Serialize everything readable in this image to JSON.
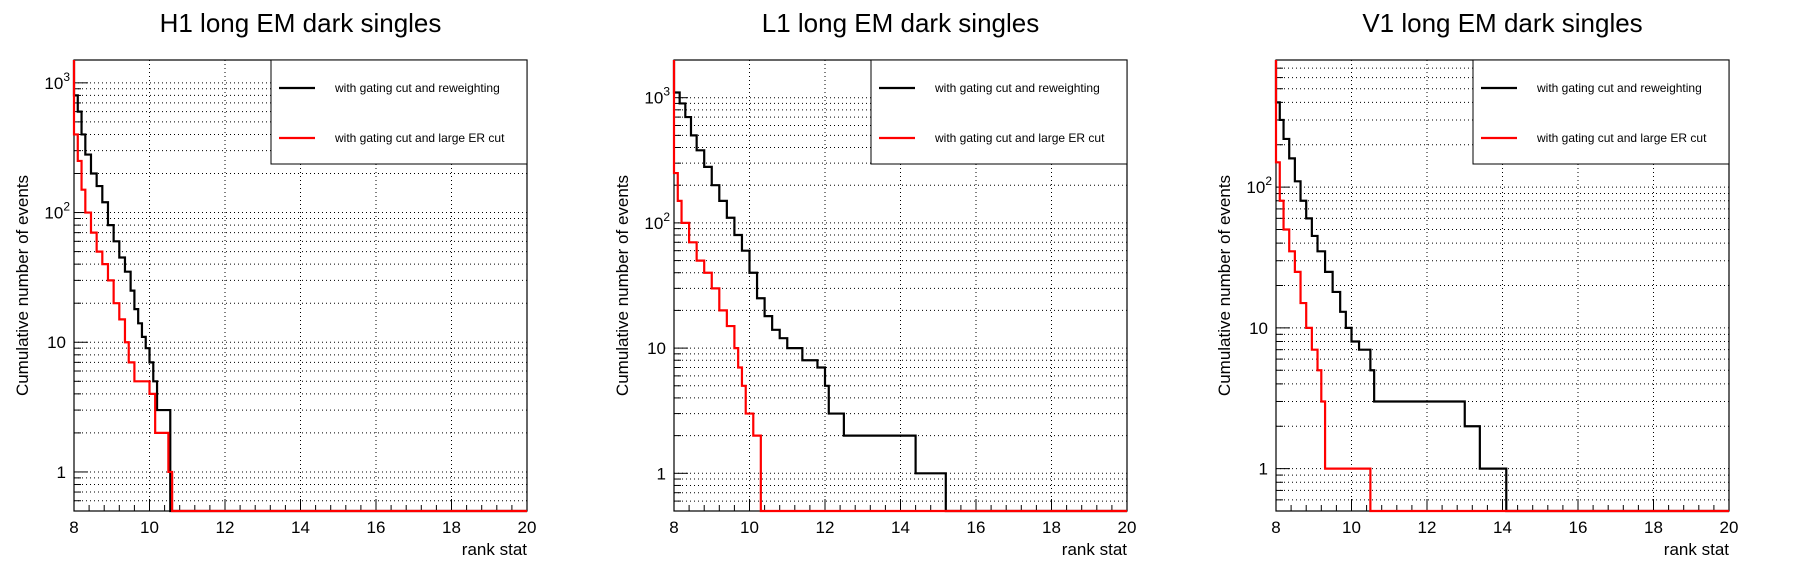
{
  "legend_labels": {
    "black": "with gating cut and reweighting",
    "red": "with gating cut and large ER cut"
  },
  "colors": {
    "black": "#000000",
    "red": "#ff0000",
    "grid": "#000000",
    "background": "#ffffff"
  },
  "chart_data": [
    {
      "type": "line",
      "step": true,
      "title": "H1 long EM dark singles",
      "xlabel": "rank stat",
      "ylabel": "Cumulative number of events",
      "xlim": [
        8,
        20
      ],
      "ylim": [
        0.5,
        1500
      ],
      "yscale": "log",
      "grid": true,
      "legend_position": "top-right",
      "xticks": [
        "8",
        "10",
        "12",
        "14",
        "16",
        "18",
        "20"
      ],
      "yticks": [
        {
          "value": 1,
          "label": "1"
        },
        {
          "value": 10,
          "label": "10"
        },
        {
          "value": 100,
          "label": "10^2"
        },
        {
          "value": 1000,
          "label": "10^3"
        }
      ],
      "series": [
        {
          "name": "with gating cut and reweighting",
          "color": "black",
          "points": [
            [
              8.0,
              800
            ],
            [
              8.1,
              600
            ],
            [
              8.2,
              400
            ],
            [
              8.3,
              280
            ],
            [
              8.45,
              200
            ],
            [
              8.6,
              160
            ],
            [
              8.75,
              120
            ],
            [
              8.9,
              80
            ],
            [
              9.05,
              60
            ],
            [
              9.2,
              45
            ],
            [
              9.35,
              35
            ],
            [
              9.5,
              25
            ],
            [
              9.6,
              18
            ],
            [
              9.7,
              14
            ],
            [
              9.8,
              11
            ],
            [
              9.9,
              9
            ],
            [
              10.0,
              7
            ],
            [
              10.1,
              5
            ],
            [
              10.2,
              3
            ],
            [
              10.55,
              0.5
            ]
          ]
        },
        {
          "name": "with gating cut and large ER cut",
          "color": "red",
          "points": [
            [
              8.0,
              400
            ],
            [
              8.1,
              250
            ],
            [
              8.2,
              150
            ],
            [
              8.3,
              100
            ],
            [
              8.45,
              70
            ],
            [
              8.6,
              50
            ],
            [
              8.75,
              40
            ],
            [
              8.9,
              30
            ],
            [
              9.05,
              20
            ],
            [
              9.2,
              15
            ],
            [
              9.35,
              10
            ],
            [
              9.45,
              7
            ],
            [
              9.6,
              5
            ],
            [
              10.0,
              4
            ],
            [
              10.15,
              2
            ],
            [
              10.5,
              1
            ],
            [
              10.6,
              0.5
            ]
          ]
        }
      ]
    },
    {
      "type": "line",
      "step": true,
      "title": "L1 long EM dark singles",
      "xlabel": "rank stat",
      "ylabel": "Cumulative number of events",
      "xlim": [
        8,
        20
      ],
      "ylim": [
        0.5,
        2000
      ],
      "yscale": "log",
      "grid": true,
      "legend_position": "top-right",
      "xticks": [
        "8",
        "10",
        "12",
        "14",
        "16",
        "18",
        "20"
      ],
      "yticks": [
        {
          "value": 1,
          "label": "1"
        },
        {
          "value": 10,
          "label": "10"
        },
        {
          "value": 100,
          "label": "10^2"
        },
        {
          "value": 1000,
          "label": "10^3"
        }
      ],
      "series": [
        {
          "name": "with gating cut and reweighting",
          "color": "black",
          "points": [
            [
              8.0,
              1100
            ],
            [
              8.15,
              900
            ],
            [
              8.3,
              700
            ],
            [
              8.45,
              500
            ],
            [
              8.6,
              380
            ],
            [
              8.8,
              280
            ],
            [
              9.0,
              200
            ],
            [
              9.2,
              150
            ],
            [
              9.4,
              110
            ],
            [
              9.6,
              80
            ],
            [
              9.8,
              60
            ],
            [
              10.0,
              40
            ],
            [
              10.2,
              25
            ],
            [
              10.4,
              18
            ],
            [
              10.6,
              14
            ],
            [
              10.8,
              12
            ],
            [
              11.0,
              10
            ],
            [
              11.4,
              8
            ],
            [
              11.8,
              7
            ],
            [
              12.0,
              5
            ],
            [
              12.1,
              3
            ],
            [
              12.5,
              2
            ],
            [
              14.4,
              1
            ],
            [
              15.2,
              0.5
            ]
          ]
        },
        {
          "name": "with gating cut and large ER cut",
          "color": "red",
          "points": [
            [
              8.0,
              250
            ],
            [
              8.1,
              150
            ],
            [
              8.2,
              100
            ],
            [
              8.4,
              70
            ],
            [
              8.6,
              50
            ],
            [
              8.8,
              40
            ],
            [
              9.0,
              30
            ],
            [
              9.2,
              20
            ],
            [
              9.4,
              15
            ],
            [
              9.6,
              10
            ],
            [
              9.7,
              7
            ],
            [
              9.8,
              5
            ],
            [
              9.9,
              3
            ],
            [
              10.1,
              2
            ],
            [
              10.3,
              0.5
            ]
          ]
        }
      ]
    },
    {
      "type": "line",
      "step": true,
      "title": "V1 long EM dark singles",
      "xlabel": "rank stat",
      "ylabel": "Cumulative number of events",
      "xlim": [
        8,
        20
      ],
      "ylim": [
        0.5,
        800
      ],
      "yscale": "log",
      "grid": true,
      "legend_position": "top-right",
      "xticks": [
        "8",
        "10",
        "12",
        "14",
        "16",
        "18",
        "20"
      ],
      "yticks": [
        {
          "value": 1,
          "label": "1"
        },
        {
          "value": 10,
          "label": "10"
        },
        {
          "value": 100,
          "label": "10^2"
        }
      ],
      "series": [
        {
          "name": "with gating cut and reweighting",
          "color": "black",
          "points": [
            [
              8.0,
              400
            ],
            [
              8.1,
              300
            ],
            [
              8.2,
              220
            ],
            [
              8.35,
              160
            ],
            [
              8.5,
              110
            ],
            [
              8.65,
              80
            ],
            [
              8.8,
              60
            ],
            [
              8.95,
              45
            ],
            [
              9.1,
              35
            ],
            [
              9.3,
              25
            ],
            [
              9.5,
              18
            ],
            [
              9.7,
              13
            ],
            [
              9.85,
              10
            ],
            [
              10.0,
              8
            ],
            [
              10.2,
              7
            ],
            [
              10.5,
              5
            ],
            [
              10.6,
              3
            ],
            [
              13.0,
              2
            ],
            [
              13.4,
              1
            ],
            [
              14.1,
              0.5
            ]
          ]
        },
        {
          "name": "with gating cut and large ER cut",
          "color": "red",
          "points": [
            [
              8.0,
              150
            ],
            [
              8.1,
              80
            ],
            [
              8.2,
              50
            ],
            [
              8.35,
              35
            ],
            [
              8.5,
              25
            ],
            [
              8.65,
              15
            ],
            [
              8.8,
              10
            ],
            [
              8.95,
              7
            ],
            [
              9.1,
              5
            ],
            [
              9.2,
              3
            ],
            [
              9.3,
              1
            ],
            [
              10.5,
              0.5
            ]
          ]
        }
      ]
    }
  ]
}
